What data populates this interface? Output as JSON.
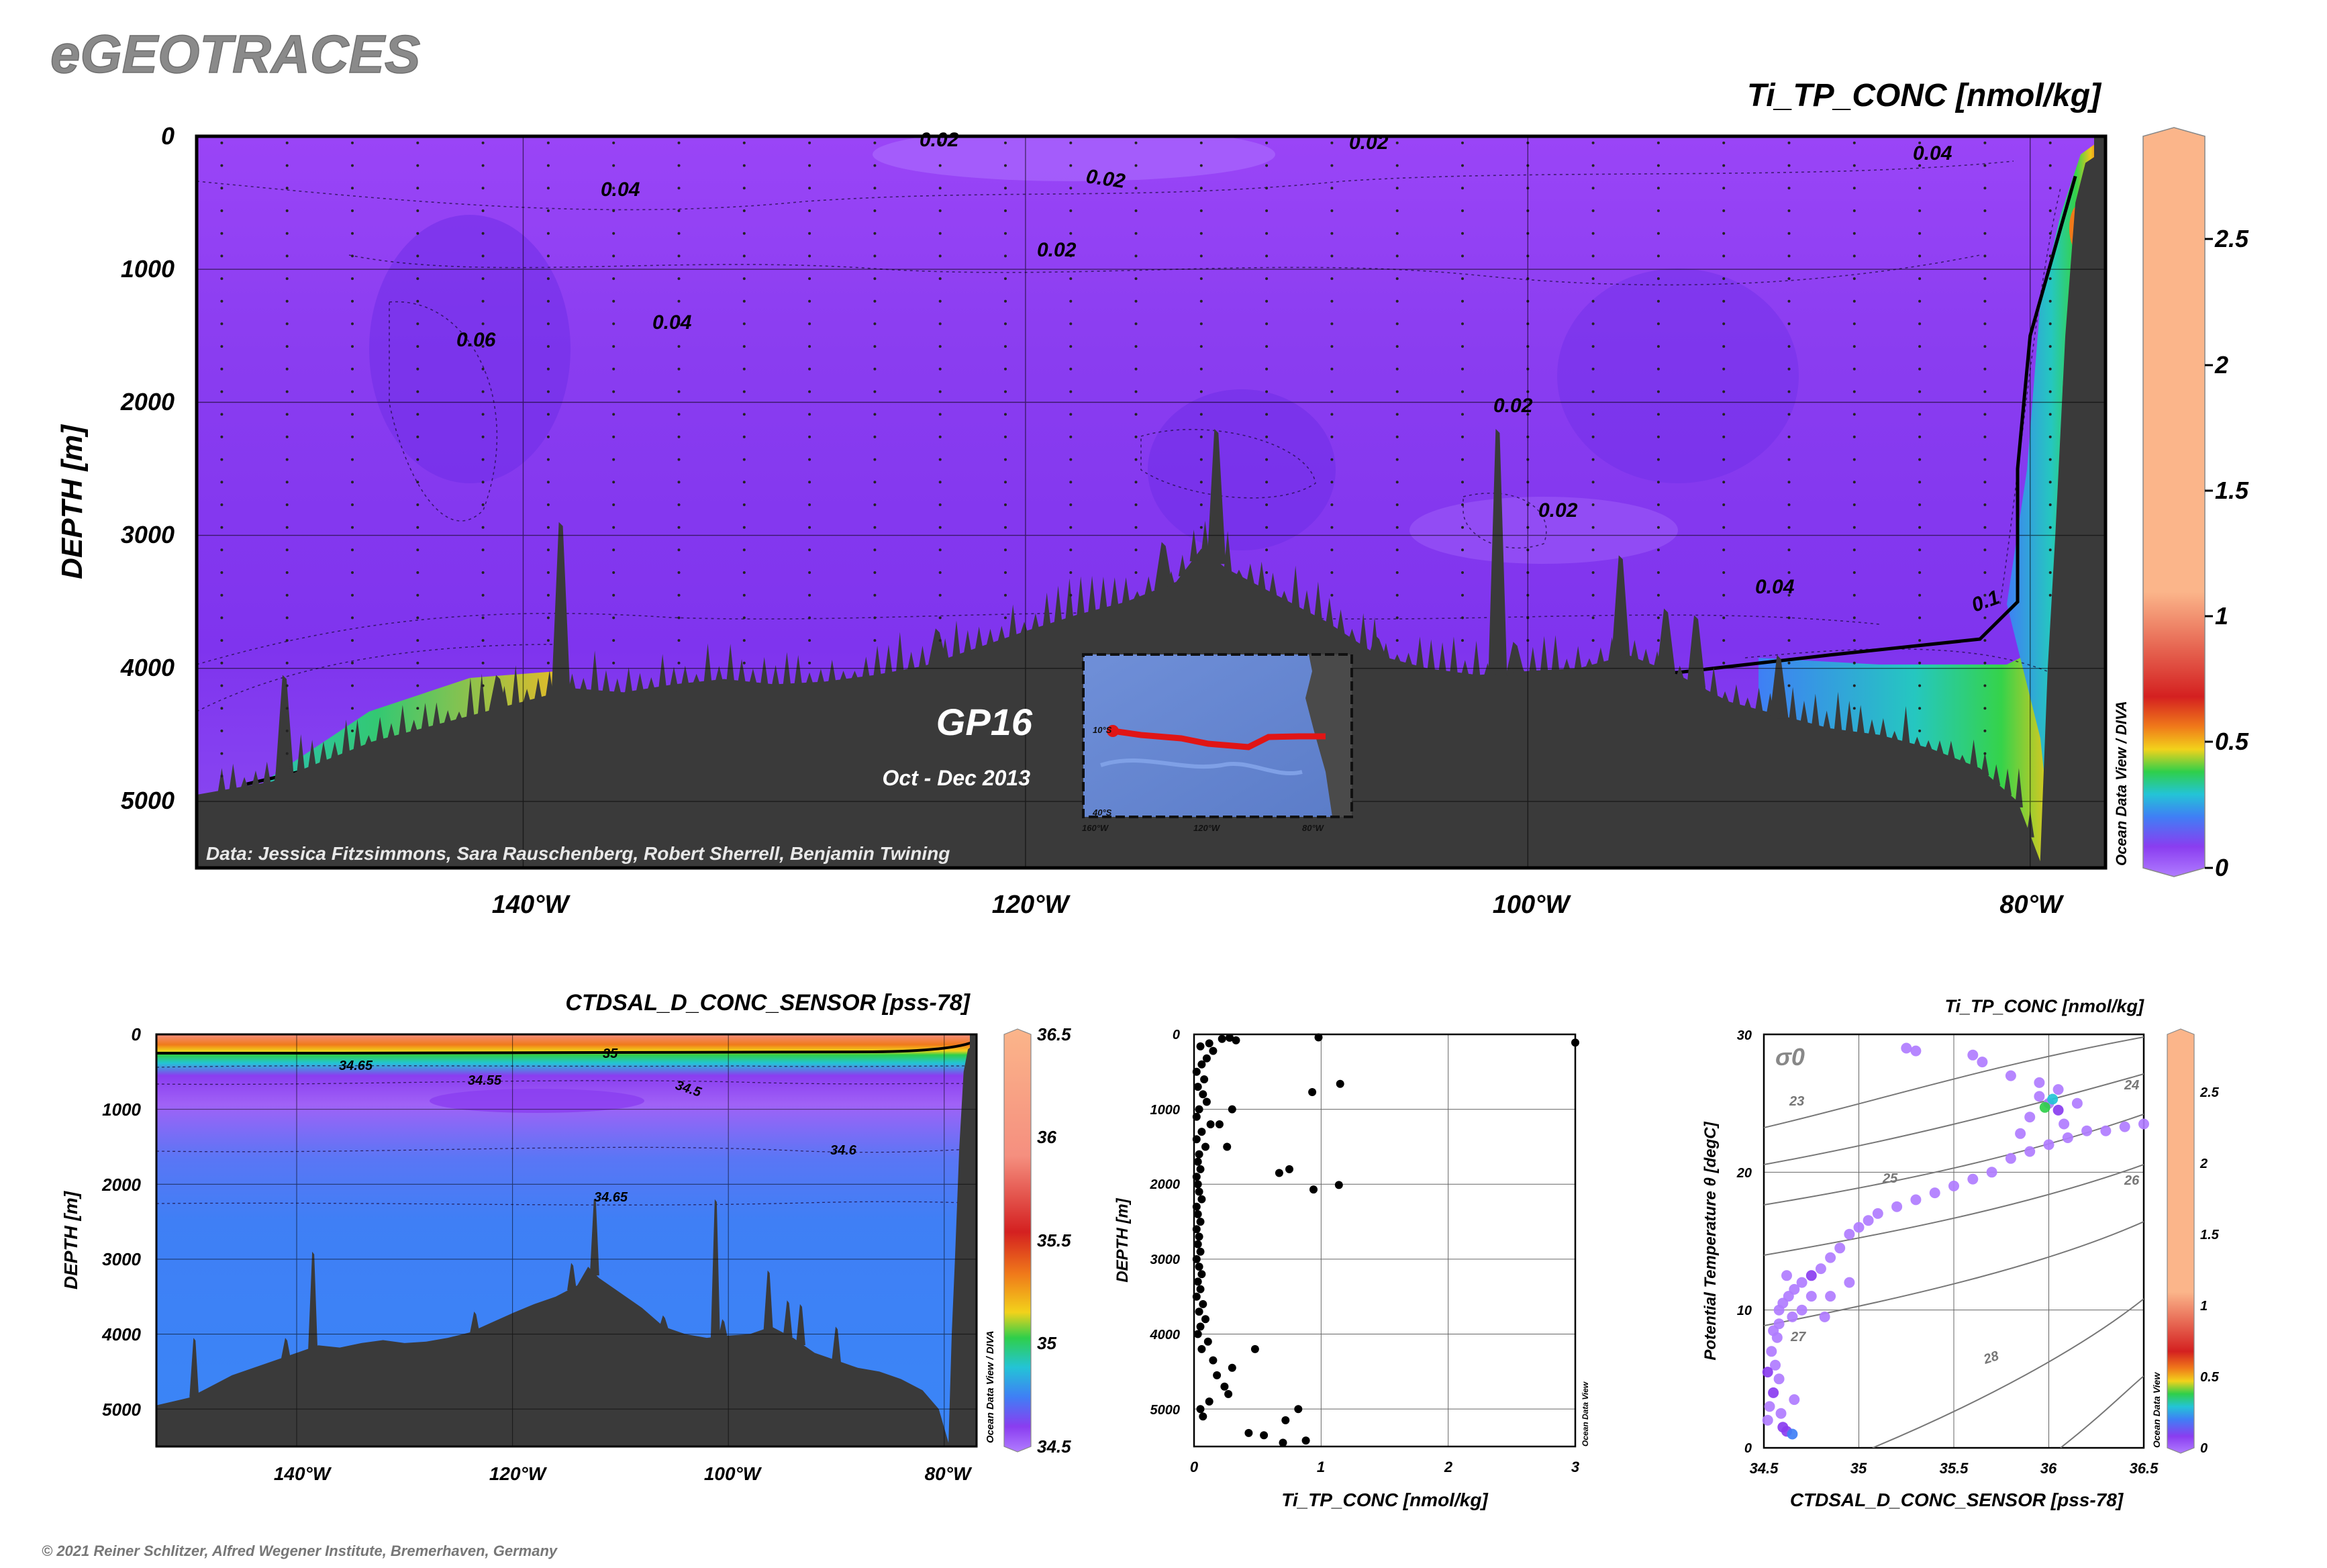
{
  "brand": "eGEOTRACES",
  "copyright": "© 2021 Reiner Schlitzer, Alfred Wegener Institute, Bremerhaven, Germany",
  "colors": {
    "seafloor": "#3a3a3a",
    "section_bg": "#8a3df0",
    "contour_main": "#000000",
    "profile_points": "#000000",
    "colormap": [
      "#b07cff",
      "#8a3df0",
      "#3f7ff5",
      "#23c4d6",
      "#2fcf4a",
      "#f2d21b",
      "#f07a1a",
      "#d42020",
      "#fbb58a"
    ]
  },
  "main": {
    "variable": "Ti_TP_CONC [nmol/kg]",
    "ylabel": "DEPTH [m]",
    "cruise": "GP16",
    "period": "Oct - Dec 2013",
    "credit": "Data: Jessica Fitzsimmons, Sara Rauschenberg, Robert Sherrell, Benjamin Twining",
    "odv": "Ocean Data View / DIVA",
    "y_ticks": [
      "0",
      "1000",
      "2000",
      "3000",
      "4000",
      "5000"
    ],
    "x_ticks": [
      "140°W",
      "120°W",
      "100°W",
      "80°W"
    ],
    "colorbar_ticks": [
      "0",
      "0.5",
      "1",
      "1.5",
      "2",
      "2.5"
    ],
    "contour_labels": [
      "0.02",
      "0.02",
      "0.04",
      "0.02",
      "0.02",
      "0.04",
      "0.06",
      "0.04",
      "0.02",
      "0.02",
      "0.04",
      "0.1"
    ]
  },
  "inset_map": {
    "lat_labels": [
      "10°S",
      "40°S"
    ],
    "lon_labels": [
      "160°W",
      "120°W",
      "80°W"
    ]
  },
  "salinity_panel": {
    "title": "CTDSAL_D_CONC_SENSOR [pss-78]",
    "ylabel": "DEPTH [m]",
    "y_ticks": [
      "0",
      "1000",
      "2000",
      "3000",
      "4000",
      "5000"
    ],
    "x_ticks": [
      "140°W",
      "120°W",
      "100°W",
      "80°W"
    ],
    "colorbar_ticks": [
      "34.5",
      "35",
      "35.5",
      "36",
      "36.5"
    ],
    "odv": "Ocean Data View / DIVA",
    "contour_labels": [
      "34.65",
      "35",
      "34.55",
      "34.5",
      "34.6",
      "34.65"
    ]
  },
  "profile_panel": {
    "xlabel": "Ti_TP_CONC [nmol/kg]",
    "ylabel": "DEPTH [m]",
    "x_ticks": [
      "0",
      "1",
      "2",
      "3"
    ],
    "y_ticks": [
      "0",
      "1000",
      "2000",
      "3000",
      "4000",
      "5000"
    ],
    "odv": "Ocean Data View"
  },
  "ts_panel": {
    "title": "Ti_TP_CONC [nmol/kg]",
    "xlabel": "CTDSAL_D_CONC_SENSOR [pss-78]",
    "ylabel": "Potential Temperature θ [degC]",
    "x_ticks": [
      "34.5",
      "35",
      "35.5",
      "36",
      "36.5"
    ],
    "y_ticks": [
      "0",
      "10",
      "20",
      "30"
    ],
    "sigma_label": "σ0",
    "isopycnal_labels": [
      "23",
      "24",
      "25",
      "26",
      "27",
      "28"
    ],
    "colorbar_ticks": [
      "0",
      "0.5",
      "1",
      "1.5",
      "2",
      "2.5"
    ],
    "odv": "Ocean Data View"
  },
  "chart_data": [
    {
      "type": "heatmap",
      "title": "Ti_TP_CONC [nmol/kg]",
      "xlabel": "",
      "ylabel": "DEPTH [m]",
      "xlim": [
        -153,
        -77
      ],
      "ylim": [
        5500,
        0
      ],
      "colorbar_range": [
        0,
        2.9
      ],
      "contour_levels": [
        0.02,
        0.04,
        0.06,
        0.1
      ],
      "contour_0_1_line": [
        [
          -151,
          4870
        ],
        [
          -146,
          4650
        ],
        [
          -140,
          4330
        ],
        [
          -134,
          4150
        ],
        [
          -100,
          4120
        ],
        [
          -94,
          4030
        ],
        [
          -88,
          3900
        ],
        [
          -82,
          3780
        ],
        [
          -80.5,
          3500
        ],
        [
          -80.5,
          2500
        ],
        [
          -80,
          1500
        ],
        [
          -78.8,
          700
        ],
        [
          -78.2,
          300
        ]
      ],
      "seafloor_depth_m": [
        [
          -153,
          4950
        ],
        [
          -150,
          4850
        ],
        [
          -148,
          4700
        ],
        [
          -146,
          4550
        ],
        [
          -144,
          4450
        ],
        [
          -142,
          4350
        ],
        [
          -140,
          4250
        ],
        [
          -138,
          4150
        ],
        [
          -136,
          4180
        ],
        [
          -134,
          4120
        ],
        [
          -132,
          4080
        ],
        [
          -130,
          4120
        ],
        [
          -128,
          4100
        ],
        [
          -126,
          4050
        ],
        [
          -124,
          3980
        ],
        [
          -122,
          3850
        ],
        [
          -120,
          3720
        ],
        [
          -118,
          3600
        ],
        [
          -116,
          3500
        ],
        [
          -114,
          3350
        ],
        [
          -113,
          3100
        ],
        [
          -112,
          3250
        ],
        [
          -110,
          3450
        ],
        [
          -108,
          3650
        ],
        [
          -106,
          3900
        ],
        [
          -104,
          4000
        ],
        [
          -102,
          4050
        ],
        [
          -100,
          4020
        ],
        [
          -98,
          4000
        ],
        [
          -96,
          3900
        ],
        [
          -94,
          4050
        ],
        [
          -92,
          4250
        ],
        [
          -90,
          4350
        ],
        [
          -88,
          4450
        ],
        [
          -86,
          4500
        ],
        [
          -84,
          4600
        ],
        [
          -82,
          4750
        ],
        [
          -80.5,
          5000
        ],
        [
          -79.6,
          5450
        ],
        [
          -79.3,
          4000
        ],
        [
          -79,
          3000
        ],
        [
          -78.6,
          1500
        ],
        [
          -78.2,
          500
        ],
        [
          -77.8,
          200
        ],
        [
          -77,
          100
        ]
      ],
      "seafloor_spikes_m": [
        [
          -149.5,
          4050
        ],
        [
          -141,
          4050
        ],
        [
          -138.5,
          2900
        ],
        [
          -134,
          4150
        ],
        [
          -131,
          4350
        ],
        [
          -123.5,
          3700
        ],
        [
          -114.5,
          3050
        ],
        [
          -112.4,
          2200
        ],
        [
          -106,
          3750
        ],
        [
          -101.2,
          2200
        ],
        [
          -100.5,
          3800
        ],
        [
          -96.3,
          3150
        ],
        [
          -94.5,
          3550
        ],
        [
          -93.3,
          3600
        ],
        [
          -90,
          3900
        ]
      ]
    },
    {
      "type": "heatmap",
      "title": "CTDSAL_D_CONC_SENSOR [pss-78]",
      "xlabel": "",
      "ylabel": "DEPTH [m]",
      "xlim": [
        -153,
        -77
      ],
      "ylim": [
        5500,
        0
      ],
      "colorbar_range": [
        34.5,
        36.5
      ],
      "contour_levels": [
        34.5,
        34.55,
        34.6,
        34.65,
        35
      ]
    },
    {
      "type": "scatter",
      "xlabel": "Ti_TP_CONC [nmol/kg]",
      "ylabel": "DEPTH [m]",
      "xlim": [
        0,
        3
      ],
      "ylim": [
        5500,
        0
      ],
      "points": [
        [
          0.98,
          40
        ],
        [
          0.28,
          45
        ],
        [
          0.33,
          80
        ],
        [
          0.22,
          60
        ],
        [
          0.12,
          120
        ],
        [
          0.05,
          160
        ],
        [
          0.15,
          220
        ],
        [
          0.1,
          320
        ],
        [
          0.06,
          400
        ],
        [
          0.02,
          500
        ],
        [
          0.08,
          600
        ],
        [
          0.03,
          700
        ],
        [
          0.07,
          800
        ],
        [
          0.1,
          900
        ],
        [
          0.04,
          1000
        ],
        [
          0.02,
          1100
        ],
        [
          0.13,
          1200
        ],
        [
          0.06,
          1300
        ],
        [
          0.02,
          1400
        ],
        [
          0.09,
          1500
        ],
        [
          0.04,
          1600
        ],
        [
          0.03,
          1700
        ],
        [
          0.05,
          1800
        ],
        [
          0.02,
          1900
        ],
        [
          0.03,
          2000
        ],
        [
          0.04,
          2100
        ],
        [
          0.06,
          2200
        ],
        [
          0.02,
          2300
        ],
        [
          0.03,
          2400
        ],
        [
          0.05,
          2500
        ],
        [
          0.02,
          2600
        ],
        [
          0.04,
          2700
        ],
        [
          0.03,
          2800
        ],
        [
          0.05,
          2900
        ],
        [
          0.02,
          3000
        ],
        [
          0.04,
          3100
        ],
        [
          0.06,
          3200
        ],
        [
          0.03,
          3300
        ],
        [
          0.05,
          3400
        ],
        [
          0.02,
          3500
        ],
        [
          0.07,
          3600
        ],
        [
          0.04,
          3700
        ],
        [
          0.09,
          3800
        ],
        [
          0.05,
          3900
        ],
        [
          0.03,
          4000
        ],
        [
          0.11,
          4100
        ],
        [
          0.06,
          4200
        ],
        [
          0.15,
          4350
        ],
        [
          0.18,
          4550
        ],
        [
          0.24,
          4700
        ],
        [
          0.27,
          4800
        ],
        [
          0.12,
          4900
        ],
        [
          0.05,
          5000
        ],
        [
          0.07,
          5100
        ],
        [
          0.43,
          5320
        ],
        [
          0.55,
          5350
        ],
        [
          0.3,
          4450
        ],
        [
          0.48,
          4200
        ],
        [
          0.82,
          5000
        ],
        [
          0.72,
          5150
        ],
        [
          0.88,
          5420
        ],
        [
          0.7,
          5450
        ],
        [
          0.3,
          1000
        ],
        [
          0.2,
          1200
        ],
        [
          0.26,
          1500
        ],
        [
          0.93,
          770
        ],
        [
          1.15,
          660
        ],
        [
          0.67,
          1850
        ],
        [
          0.75,
          1800
        ],
        [
          0.94,
          2070
        ],
        [
          1.14,
          2010
        ],
        [
          3.0,
          110
        ]
      ]
    },
    {
      "type": "scatter",
      "title": "Ti_TP_CONC [nmol/kg]",
      "xlabel": "CTDSAL_D_CONC_SENSOR [pss-78]",
      "ylabel": "Potential Temperature θ [degC]",
      "xlim": [
        34.5,
        36.5
      ],
      "ylim": [
        0,
        30
      ],
      "colorbar_range": [
        0,
        2.9
      ],
      "isopycnals_sigma0": [
        23,
        24,
        25,
        26,
        27,
        28
      ],
      "points": [
        [
          34.52,
          2.0,
          0.05
        ],
        [
          34.53,
          3.0,
          0.04
        ],
        [
          34.55,
          4.0,
          0.06
        ],
        [
          34.58,
          5.0,
          0.05
        ],
        [
          34.6,
          1.5,
          0.1
        ],
        [
          34.62,
          1.2,
          0.08
        ],
        [
          34.65,
          1.0,
          0.2
        ],
        [
          34.56,
          6.0,
          0.04
        ],
        [
          34.57,
          8.0,
          0.03
        ],
        [
          34.58,
          10.0,
          0.04
        ],
        [
          34.6,
          10.5,
          0.05
        ],
        [
          34.63,
          11.0,
          0.03
        ],
        [
          34.66,
          11.5,
          0.04
        ],
        [
          34.7,
          12.0,
          0.05
        ],
        [
          34.75,
          12.5,
          0.06
        ],
        [
          34.8,
          13.0,
          0.05
        ],
        [
          34.85,
          13.8,
          0.04
        ],
        [
          34.9,
          14.5,
          0.03
        ],
        [
          34.95,
          15.5,
          0.04
        ],
        [
          35.0,
          16.0,
          0.05
        ],
        [
          35.05,
          16.5,
          0.04
        ],
        [
          35.1,
          17.0,
          0.03
        ],
        [
          35.2,
          17.5,
          0.04
        ],
        [
          35.3,
          18.0,
          0.05
        ],
        [
          35.4,
          18.5,
          0.04
        ],
        [
          35.5,
          19.0,
          0.03
        ],
        [
          35.6,
          19.5,
          0.04
        ],
        [
          35.7,
          20.0,
          0.05
        ],
        [
          35.8,
          21.0,
          0.04
        ],
        [
          35.9,
          21.5,
          0.03
        ],
        [
          36.0,
          22.0,
          0.05
        ],
        [
          36.1,
          22.5,
          0.04
        ],
        [
          36.2,
          23.0,
          0.05
        ],
        [
          36.3,
          23.0,
          0.04
        ],
        [
          36.4,
          23.3,
          0.05
        ],
        [
          36.5,
          23.5,
          0.04
        ],
        [
          35.6,
          28.5,
          0.04
        ],
        [
          35.65,
          28.0,
          0.03
        ],
        [
          35.25,
          29.0,
          0.04
        ],
        [
          35.3,
          28.8,
          0.03
        ],
        [
          35.8,
          27.0,
          0.05
        ],
        [
          35.95,
          26.5,
          0.04
        ],
        [
          36.0,
          25.0,
          0.05
        ],
        [
          35.9,
          24.0,
          0.04
        ],
        [
          36.05,
          24.5,
          0.1
        ],
        [
          36.15,
          25.0,
          0.04
        ],
        [
          36.05,
          26.0,
          0.04
        ],
        [
          35.95,
          25.5,
          0.05
        ],
        [
          35.98,
          24.7,
          0.4
        ],
        [
          36.02,
          25.3,
          0.3
        ],
        [
          36.08,
          23.5,
          0.05
        ],
        [
          35.85,
          22.8,
          0.04
        ],
        [
          34.55,
          8.5,
          0.03
        ],
        [
          34.58,
          9.0,
          0.04
        ],
        [
          34.65,
          9.5,
          0.05
        ],
        [
          34.7,
          10.0,
          0.04
        ],
        [
          34.75,
          11.0,
          0.05
        ],
        [
          34.52,
          5.5,
          0.06
        ],
        [
          34.54,
          7.0,
          0.05
        ],
        [
          34.66,
          3.5,
          0.05
        ],
        [
          34.59,
          2.5,
          0.04
        ],
        [
          34.62,
          12.5,
          0.04
        ],
        [
          34.85,
          11.0,
          0.04
        ],
        [
          34.82,
          9.5,
          0.05
        ],
        [
          34.95,
          12.0,
          0.04
        ]
      ]
    }
  ]
}
